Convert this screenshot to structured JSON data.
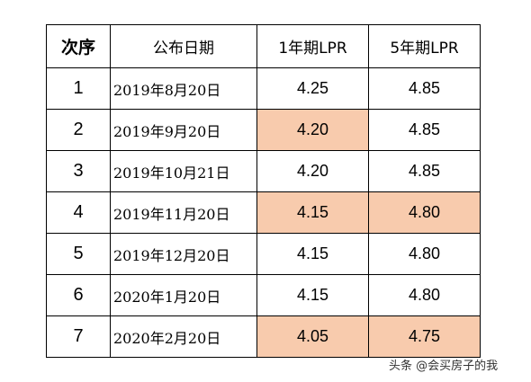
{
  "table": {
    "headers": [
      "次序",
      "公布日期",
      "1年期LPR",
      "5年期LPR"
    ],
    "highlight_color": "#f8cbad",
    "rows": [
      {
        "seq": "1",
        "date": "2019年8月20日",
        "lpr1": "4.25",
        "lpr5": "4.85",
        "lpr1_highlight": false,
        "lpr5_highlight": false
      },
      {
        "seq": "2",
        "date": "2019年9月20日",
        "lpr1": "4.20",
        "lpr5": "4.85",
        "lpr1_highlight": true,
        "lpr5_highlight": false
      },
      {
        "seq": "3",
        "date": "2019年10月21日",
        "lpr1": "4.20",
        "lpr5": "4.85",
        "lpr1_highlight": false,
        "lpr5_highlight": false
      },
      {
        "seq": "4",
        "date": "2019年11月20日",
        "lpr1": "4.15",
        "lpr5": "4.80",
        "lpr1_highlight": true,
        "lpr5_highlight": true
      },
      {
        "seq": "5",
        "date": "2019年12月20日",
        "lpr1": "4.15",
        "lpr5": "4.80",
        "lpr1_highlight": false,
        "lpr5_highlight": false
      },
      {
        "seq": "6",
        "date": "2020年1月20日",
        "lpr1": "4.15",
        "lpr5": "4.80",
        "lpr1_highlight": false,
        "lpr5_highlight": false
      },
      {
        "seq": "7",
        "date": "2020年2月20日",
        "lpr1": "4.05",
        "lpr5": "4.75",
        "lpr1_highlight": true,
        "lpr5_highlight": true
      }
    ]
  },
  "watermark": "头条 @会买房子的我"
}
